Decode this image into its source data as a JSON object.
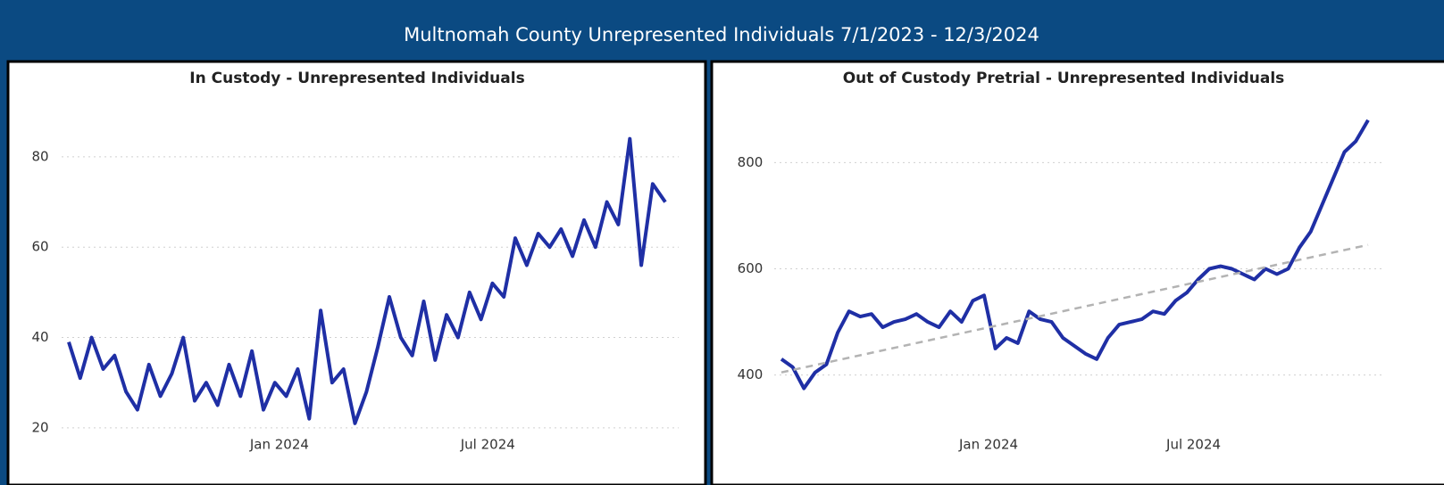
{
  "title": "Multnomah County Unrepresented Individuals 7/1/2023 - 12/3/2024",
  "chart_data": [
    {
      "type": "line",
      "title": "In Custody - Unrepresented Individuals",
      "x": [
        "2023-07-01",
        "2023-07-11",
        "2023-07-21",
        "2023-07-31",
        "2023-08-10",
        "2023-08-20",
        "2023-08-30",
        "2023-09-09",
        "2023-09-19",
        "2023-09-29",
        "2023-10-09",
        "2023-10-19",
        "2023-10-29",
        "2023-11-08",
        "2023-11-18",
        "2023-11-28",
        "2023-12-08",
        "2023-12-18",
        "2023-12-28",
        "2024-01-07",
        "2024-01-17",
        "2024-01-27",
        "2024-02-06",
        "2024-02-16",
        "2024-02-26",
        "2024-03-07",
        "2024-03-17",
        "2024-03-27",
        "2024-04-06",
        "2024-04-16",
        "2024-04-26",
        "2024-05-06",
        "2024-05-16",
        "2024-05-26",
        "2024-06-05",
        "2024-06-15",
        "2024-06-25",
        "2024-07-05",
        "2024-07-15",
        "2024-07-25",
        "2024-08-04",
        "2024-08-14",
        "2024-08-24",
        "2024-09-03",
        "2024-09-13",
        "2024-09-23",
        "2024-10-03",
        "2024-10-13",
        "2024-10-23",
        "2024-11-02",
        "2024-11-12",
        "2024-11-22",
        "2024-12-03"
      ],
      "series": [
        {
          "color": "#1f2fa5",
          "values": [
            39,
            31,
            40,
            33,
            36,
            28,
            24,
            34,
            27,
            32,
            40,
            26,
            30,
            25,
            34,
            27,
            37,
            24,
            30,
            27,
            33,
            22,
            46,
            30,
            33,
            21,
            28,
            38,
            49,
            40,
            36,
            48,
            35,
            45,
            40,
            50,
            44,
            52,
            49,
            62,
            56,
            63,
            60,
            64,
            58,
            66,
            60,
            70,
            65,
            84,
            56,
            74,
            70
          ]
        }
      ],
      "xlim": [
        "2023-07-01",
        "2024-12-03"
      ],
      "xticks": [
        {
          "value": "2024-01-01",
          "label": "Jan 2024"
        },
        {
          "value": "2024-07-01",
          "label": "Jul 2024"
        }
      ],
      "ylim": [
        18,
        94
      ],
      "yticks": [
        20,
        40,
        60,
        80
      ],
      "grid": true
    },
    {
      "type": "line",
      "title": "Out of Custody Pretrial - Unrepresented Individuals",
      "x": [
        "2023-07-01",
        "2023-07-11",
        "2023-07-21",
        "2023-07-31",
        "2023-08-10",
        "2023-08-20",
        "2023-08-30",
        "2023-09-09",
        "2023-09-19",
        "2023-09-29",
        "2023-10-09",
        "2023-10-19",
        "2023-10-29",
        "2023-11-08",
        "2023-11-18",
        "2023-11-28",
        "2023-12-08",
        "2023-12-18",
        "2023-12-28",
        "2024-01-07",
        "2024-01-17",
        "2024-01-27",
        "2024-02-06",
        "2024-02-16",
        "2024-02-26",
        "2024-03-07",
        "2024-03-17",
        "2024-03-27",
        "2024-04-06",
        "2024-04-16",
        "2024-04-26",
        "2024-05-06",
        "2024-05-16",
        "2024-05-26",
        "2024-06-05",
        "2024-06-15",
        "2024-06-25",
        "2024-07-05",
        "2024-07-15",
        "2024-07-25",
        "2024-08-04",
        "2024-08-14",
        "2024-08-24",
        "2024-09-03",
        "2024-09-13",
        "2024-09-23",
        "2024-10-03",
        "2024-10-13",
        "2024-10-23",
        "2024-11-02",
        "2024-11-12",
        "2024-11-22",
        "2024-12-03"
      ],
      "series": [
        {
          "color": "#1f2fa5",
          "values": [
            430,
            415,
            375,
            405,
            420,
            480,
            520,
            510,
            515,
            490,
            500,
            505,
            515,
            500,
            490,
            520,
            500,
            540,
            550,
            450,
            470,
            460,
            520,
            505,
            500,
            470,
            455,
            440,
            430,
            470,
            495,
            500,
            505,
            520,
            515,
            540,
            555,
            580,
            600,
            605,
            600,
            590,
            580,
            600,
            590,
            600,
            640,
            670,
            720,
            770,
            820,
            840,
            880
          ]
        },
        {
          "color": "#b3b3b3",
          "dashed": true,
          "x": [
            "2023-07-01",
            "2024-12-03"
          ],
          "values": [
            405,
            645
          ]
        }
      ],
      "xlim": [
        "2023-07-01",
        "2024-12-03"
      ],
      "xticks": [
        {
          "value": "2024-01-01",
          "label": "Jan 2024"
        },
        {
          "value": "2024-07-01",
          "label": "Jul 2024"
        }
      ],
      "ylim": [
        250,
        930
      ],
      "yticks": [
        400,
        600,
        800
      ],
      "grid": true
    }
  ]
}
